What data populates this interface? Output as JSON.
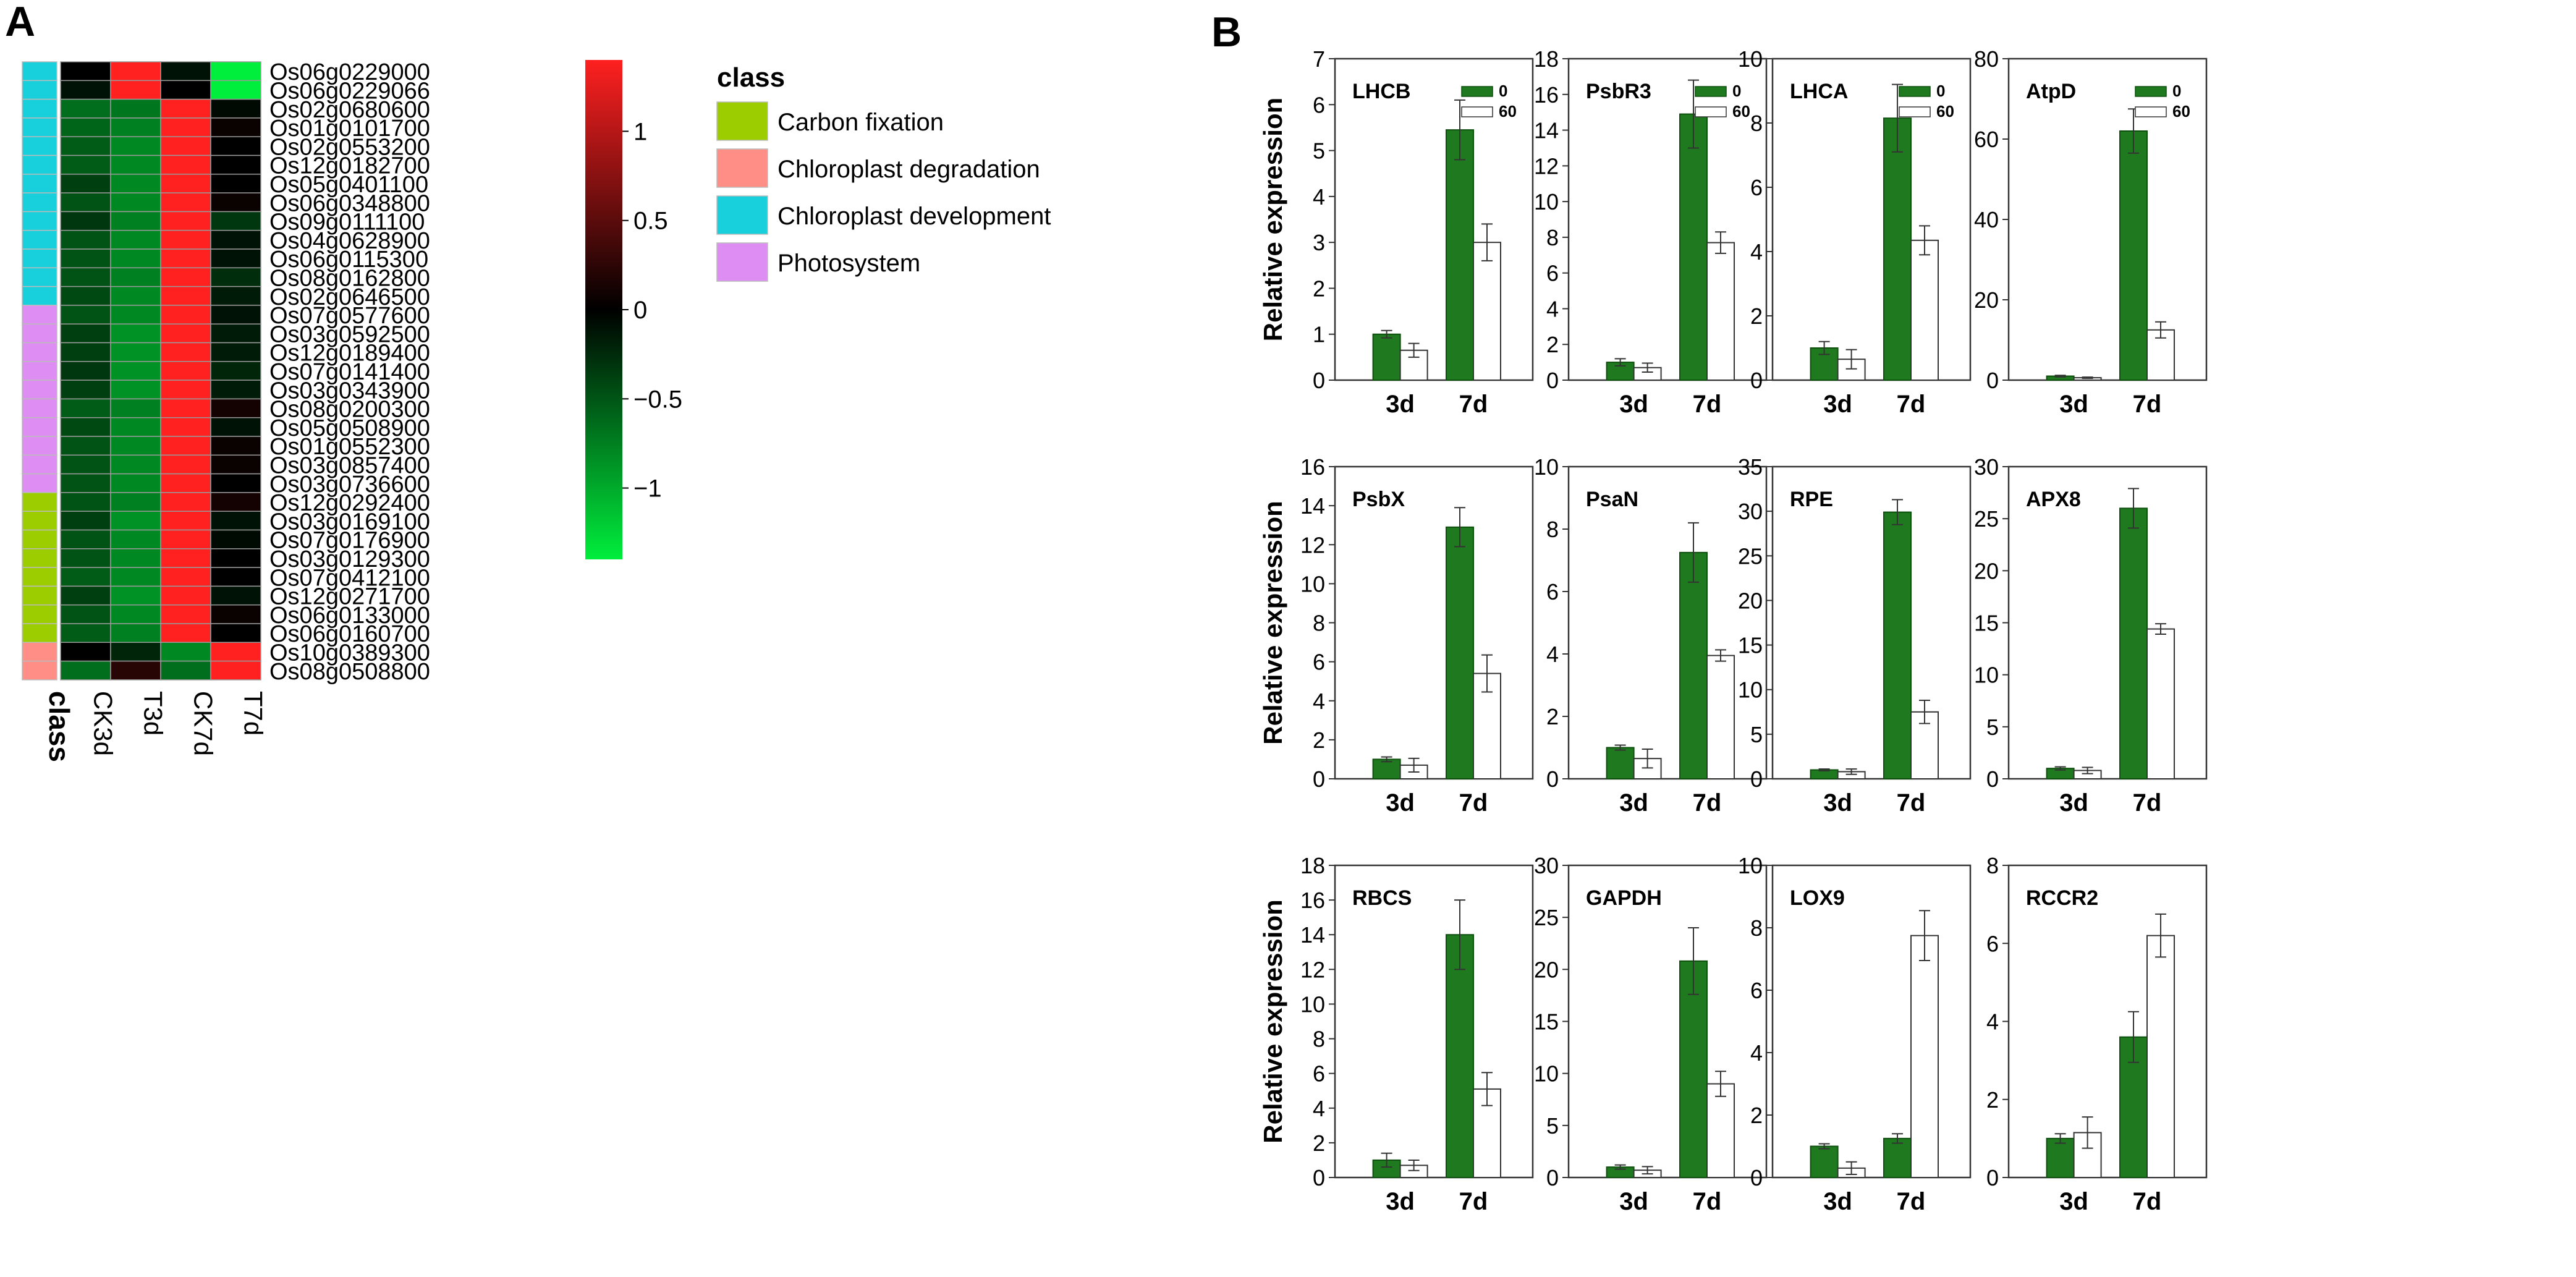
{
  "panels": {
    "a_label": "A",
    "b_label": "B"
  },
  "colors": {
    "bar_dark": "#1f7a1f",
    "bar_light": "#ffffff",
    "heat_low": "#00ee3c",
    "heat_mid": "#000000",
    "heat_high": "#ff2020",
    "class_carbon": "#9ccd00",
    "class_degradation": "#ff8f86",
    "class_development": "#18d0dc",
    "class_photosystem": "#de8ef2"
  },
  "chart_data": [
    {
      "type": "heatmap",
      "panel": "A",
      "columns": [
        "CK3d",
        "T3d",
        "CK7d",
        "T7d"
      ],
      "class_axis_label": "class",
      "legend": {
        "title": "class",
        "items": [
          {
            "key": "carbon",
            "label": "Carbon fixation"
          },
          {
            "key": "degradation",
            "label": "Chloroplast degradation"
          },
          {
            "key": "development",
            "label": "Chloroplast development"
          },
          {
            "key": "photosystem",
            "label": "Photosystem"
          }
        ]
      },
      "colorbar": {
        "range": [
          -1.4,
          1.4
        ],
        "ticks": [
          1,
          0.5,
          0,
          -0.5,
          -1
        ],
        "tick_labels": [
          "1",
          "0.5",
          "0",
          "−0.5",
          "−1"
        ]
      },
      "rows": [
        {
          "gene": "Os06g0229000",
          "class": "development",
          "values": [
            0.0,
            1.3,
            -0.1,
            -1.3
          ]
        },
        {
          "gene": "Os06g0229066",
          "class": "development",
          "values": [
            -0.1,
            1.3,
            0.0,
            -1.3
          ]
        },
        {
          "gene": "Os02g0680600",
          "class": "development",
          "values": [
            -0.6,
            -0.65,
            1.35,
            -0.05
          ]
        },
        {
          "gene": "Os01g0101700",
          "class": "development",
          "values": [
            -0.55,
            -0.7,
            1.35,
            0.05
          ]
        },
        {
          "gene": "Os02g0553200",
          "class": "development",
          "values": [
            -0.5,
            -0.75,
            1.35,
            0.0
          ]
        },
        {
          "gene": "Os12g0182700",
          "class": "development",
          "values": [
            -0.5,
            -0.75,
            1.35,
            0.0
          ]
        },
        {
          "gene": "Os05g0401100",
          "class": "development",
          "values": [
            -0.35,
            -0.75,
            1.35,
            0.0
          ]
        },
        {
          "gene": "Os06g0348800",
          "class": "development",
          "values": [
            -0.45,
            -0.75,
            1.35,
            0.05
          ]
        },
        {
          "gene": "Os09g0111100",
          "class": "development",
          "values": [
            -0.3,
            -0.7,
            1.35,
            -0.3
          ]
        },
        {
          "gene": "Os04g0628900",
          "class": "development",
          "values": [
            -0.45,
            -0.75,
            1.35,
            -0.1
          ]
        },
        {
          "gene": "Os06g0115300",
          "class": "development",
          "values": [
            -0.45,
            -0.75,
            1.35,
            -0.1
          ]
        },
        {
          "gene": "Os08g0162800",
          "class": "development",
          "values": [
            -0.45,
            -0.7,
            1.35,
            -0.25
          ]
        },
        {
          "gene": "Os02g0646500",
          "class": "development",
          "values": [
            -0.4,
            -0.75,
            1.35,
            -0.15
          ]
        },
        {
          "gene": "Os07g0577600",
          "class": "photosystem",
          "values": [
            -0.45,
            -0.75,
            1.35,
            -0.1
          ]
        },
        {
          "gene": "Os03g0592500",
          "class": "photosystem",
          "values": [
            -0.35,
            -0.8,
            1.35,
            -0.15
          ]
        },
        {
          "gene": "Os12g0189400",
          "class": "photosystem",
          "values": [
            -0.35,
            -0.8,
            1.35,
            -0.15
          ]
        },
        {
          "gene": "Os07g0141400",
          "class": "photosystem",
          "values": [
            -0.3,
            -0.8,
            1.35,
            -0.2
          ]
        },
        {
          "gene": "Os03g0343900",
          "class": "photosystem",
          "values": [
            -0.35,
            -0.8,
            1.35,
            -0.15
          ]
        },
        {
          "gene": "Os08g0200300",
          "class": "photosystem",
          "values": [
            -0.5,
            -0.7,
            1.3,
            0.1
          ]
        },
        {
          "gene": "Os05g0508900",
          "class": "photosystem",
          "values": [
            -0.4,
            -0.75,
            1.35,
            -0.1
          ]
        },
        {
          "gene": "Os01g0552300",
          "class": "photosystem",
          "values": [
            -0.45,
            -0.75,
            1.35,
            0.05
          ]
        },
        {
          "gene": "Os03g0857400",
          "class": "photosystem",
          "values": [
            -0.45,
            -0.75,
            1.35,
            0.05
          ]
        },
        {
          "gene": "Os03g0736600",
          "class": "photosystem",
          "values": [
            -0.45,
            -0.75,
            1.35,
            0.0
          ]
        },
        {
          "gene": "Os12g0292400",
          "class": "carbon",
          "values": [
            -0.45,
            -0.7,
            1.35,
            0.1
          ]
        },
        {
          "gene": "Os03g0169100",
          "class": "carbon",
          "values": [
            -0.35,
            -0.8,
            1.35,
            -0.1
          ]
        },
        {
          "gene": "Os07g0176900",
          "class": "carbon",
          "values": [
            -0.45,
            -0.75,
            1.35,
            -0.05
          ]
        },
        {
          "gene": "Os03g0129300",
          "class": "carbon",
          "values": [
            -0.45,
            -0.75,
            1.35,
            0.0
          ]
        },
        {
          "gene": "Os07g0412100",
          "class": "carbon",
          "values": [
            -0.5,
            -0.75,
            1.35,
            0.0
          ]
        },
        {
          "gene": "Os12g0271700",
          "class": "carbon",
          "values": [
            -0.35,
            -0.8,
            1.35,
            -0.1
          ]
        },
        {
          "gene": "Os06g0133000",
          "class": "carbon",
          "values": [
            -0.45,
            -0.75,
            1.35,
            0.05
          ]
        },
        {
          "gene": "Os06g0160700",
          "class": "carbon",
          "values": [
            -0.5,
            -0.7,
            1.35,
            0.0
          ]
        },
        {
          "gene": "Os10g0389300",
          "class": "degradation",
          "values": [
            0.0,
            -0.2,
            -0.75,
            1.35
          ]
        },
        {
          "gene": "Os08g0508800",
          "class": "degradation",
          "values": [
            -0.6,
            0.2,
            -0.6,
            1.35
          ]
        }
      ]
    },
    {
      "type": "bar",
      "panel": "B",
      "categories": [
        "3d",
        "7d"
      ],
      "ylabel": "Relative expression",
      "legend": [
        "0",
        "60"
      ],
      "subplots": [
        {
          "title": "LHCB",
          "ylim": [
            0,
            7
          ],
          "yticks": [
            0,
            1,
            2,
            3,
            4,
            5,
            6,
            7
          ],
          "legend": true,
          "series": [
            {
              "name": "0",
              "values": [
                1.0,
                5.45
              ],
              "errors": [
                0.08,
                0.65
              ]
            },
            {
              "name": "60",
              "values": [
                0.65,
                3.0
              ],
              "errors": [
                0.15,
                0.4
              ]
            }
          ]
        },
        {
          "title": "PsbR3",
          "ylim": [
            0,
            18
          ],
          "yticks": [
            0,
            2,
            4,
            6,
            8,
            10,
            12,
            14,
            16,
            18
          ],
          "legend": true,
          "series": [
            {
              "name": "0",
              "values": [
                1.0,
                14.9
              ],
              "errors": [
                0.2,
                1.9
              ]
            },
            {
              "name": "60",
              "values": [
                0.7,
                7.7
              ],
              "errors": [
                0.25,
                0.6
              ]
            }
          ]
        },
        {
          "title": "LHCA",
          "ylim": [
            0,
            10
          ],
          "yticks": [
            0,
            2,
            4,
            6,
            8,
            10
          ],
          "legend": true,
          "series": [
            {
              "name": "0",
              "values": [
                1.0,
                8.15
              ],
              "errors": [
                0.2,
                1.05
              ]
            },
            {
              "name": "60",
              "values": [
                0.65,
                4.35
              ],
              "errors": [
                0.3,
                0.45
              ]
            }
          ]
        },
        {
          "title": "AtpD",
          "ylim": [
            0,
            80
          ],
          "yticks": [
            0,
            20,
            40,
            60,
            80
          ],
          "legend": true,
          "series": [
            {
              "name": "0",
              "values": [
                1.0,
                62.0
              ],
              "errors": [
                0.2,
                5.5
              ]
            },
            {
              "name": "60",
              "values": [
                0.6,
                12.5
              ],
              "errors": [
                0.15,
                2.0
              ]
            }
          ]
        },
        {
          "title": "PsbX",
          "ylim": [
            0,
            16
          ],
          "yticks": [
            0,
            2,
            4,
            6,
            8,
            10,
            12,
            14,
            16
          ],
          "legend": false,
          "series": [
            {
              "name": "0",
              "values": [
                1.0,
                12.9
              ],
              "errors": [
                0.12,
                1.0
              ]
            },
            {
              "name": "60",
              "values": [
                0.7,
                5.4
              ],
              "errors": [
                0.35,
                0.95
              ]
            }
          ]
        },
        {
          "title": "PsaN",
          "ylim": [
            0,
            10
          ],
          "yticks": [
            0,
            2,
            4,
            6,
            8,
            10
          ],
          "legend": false,
          "series": [
            {
              "name": "0",
              "values": [
                1.0,
                7.25
              ],
              "errors": [
                0.08,
                0.95
              ]
            },
            {
              "name": "60",
              "values": [
                0.65,
                3.95
              ],
              "errors": [
                0.3,
                0.18
              ]
            }
          ]
        },
        {
          "title": "RPE",
          "ylim": [
            0,
            35
          ],
          "yticks": [
            0,
            5,
            10,
            15,
            20,
            25,
            30,
            35
          ],
          "legend": false,
          "series": [
            {
              "name": "0",
              "values": [
                1.0,
                29.9
              ],
              "errors": [
                0.1,
                1.4
              ]
            },
            {
              "name": "60",
              "values": [
                0.8,
                7.5
              ],
              "errors": [
                0.3,
                1.3
              ]
            }
          ]
        },
        {
          "title": "APX8",
          "ylim": [
            0,
            30
          ],
          "yticks": [
            0,
            5,
            10,
            15,
            20,
            25,
            30
          ],
          "legend": false,
          "series": [
            {
              "name": "0",
              "values": [
                1.0,
                26.0
              ],
              "errors": [
                0.15,
                1.9
              ]
            },
            {
              "name": "60",
              "values": [
                0.8,
                14.4
              ],
              "errors": [
                0.3,
                0.5
              ]
            }
          ]
        },
        {
          "title": "RBCS",
          "ylim": [
            0,
            18
          ],
          "yticks": [
            0,
            2,
            4,
            6,
            8,
            10,
            12,
            14,
            16,
            18
          ],
          "legend": false,
          "series": [
            {
              "name": "0",
              "values": [
                1.0,
                14.0
              ],
              "errors": [
                0.4,
                2.0
              ]
            },
            {
              "name": "60",
              "values": [
                0.7,
                5.1
              ],
              "errors": [
                0.3,
                0.95
              ]
            }
          ]
        },
        {
          "title": "GAPDH",
          "ylim": [
            0,
            30
          ],
          "yticks": [
            0,
            5,
            10,
            15,
            20,
            25,
            30
          ],
          "legend": false,
          "series": [
            {
              "name": "0",
              "values": [
                1.0,
                20.8
              ],
              "errors": [
                0.2,
                3.2
              ]
            },
            {
              "name": "60",
              "values": [
                0.7,
                9.0
              ],
              "errors": [
                0.35,
                1.2
              ]
            }
          ]
        },
        {
          "title": "LOX9",
          "ylim": [
            0,
            10
          ],
          "yticks": [
            0,
            2,
            4,
            6,
            8,
            10
          ],
          "legend": false,
          "series": [
            {
              "name": "0",
              "values": [
                1.0,
                1.25
              ],
              "errors": [
                0.08,
                0.15
              ]
            },
            {
              "name": "60",
              "values": [
                0.3,
                7.75
              ],
              "errors": [
                0.2,
                0.8
              ]
            }
          ]
        },
        {
          "title": "RCCR2",
          "ylim": [
            0,
            8
          ],
          "yticks": [
            0,
            2,
            4,
            6,
            8
          ],
          "legend": false,
          "series": [
            {
              "name": "0",
              "values": [
                1.0,
                3.6
              ],
              "errors": [
                0.12,
                0.65
              ]
            },
            {
              "name": "60",
              "values": [
                1.15,
                6.2
              ],
              "errors": [
                0.4,
                0.55
              ]
            }
          ]
        }
      ]
    }
  ]
}
